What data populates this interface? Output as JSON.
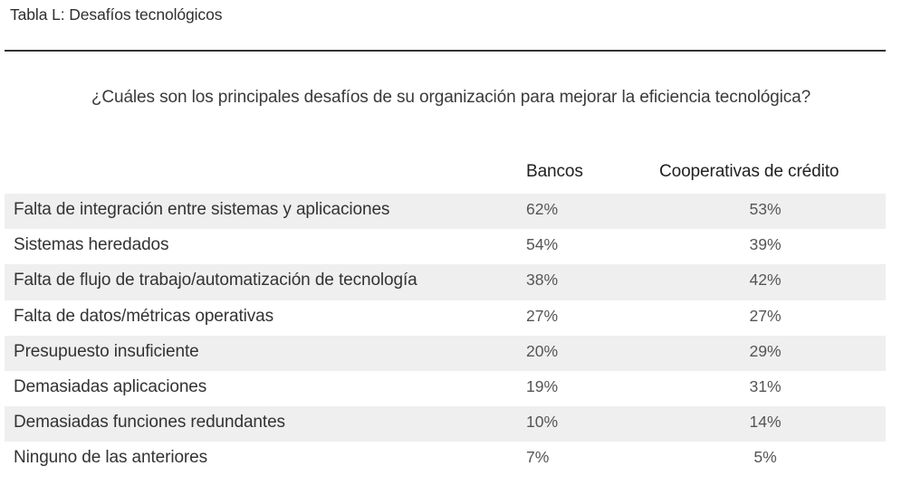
{
  "title": "Tabla L: Desafíos tecnológicos",
  "question": "¿Cuáles son los principales desafíos de su organización para mejorar la eficiencia tecnológica?",
  "columns": [
    "Bancos",
    "Cooperativas de crédito"
  ],
  "rows": [
    {
      "label": "Falta de integración entre sistemas y aplicaciones",
      "bancos": "62%",
      "cooperativas": "53%"
    },
    {
      "label": "Sistemas heredados",
      "bancos": "54%",
      "cooperativas": "39%"
    },
    {
      "label": "Falta de flujo de trabajo/automatización de tecnología",
      "bancos": "38%",
      "cooperativas": "42%"
    },
    {
      "label": "Falta de datos/métricas operativas",
      "bancos": "27%",
      "cooperativas": "27%"
    },
    {
      "label": "Presupuesto insuficiente",
      "bancos": "20%",
      "cooperativas": "29%"
    },
    {
      "label": "Demasiadas aplicaciones",
      "bancos": "19%",
      "cooperativas": "31%"
    },
    {
      "label": "Demasiadas funciones redundantes",
      "bancos": "10%",
      "cooperativas": "14%"
    },
    {
      "label": "Ninguno de las anteriores",
      "bancos": "7%",
      "cooperativas": "5%"
    }
  ],
  "chart_data": {
    "type": "table",
    "title": "Tabla L: Desafíos tecnológicos",
    "subtitle": "¿Cuáles son los principales desafíos de su organización para mejorar la eficiencia tecnológica?",
    "categories": [
      "Falta de integración entre sistemas y aplicaciones",
      "Sistemas heredados",
      "Falta de flujo de trabajo/automatización de tecnología",
      "Falta de datos/métricas operativas",
      "Presupuesto insuficiente",
      "Demasiadas aplicaciones",
      "Demasiadas funciones redundantes",
      "Ninguno de las anteriores"
    ],
    "series": [
      {
        "name": "Bancos",
        "values": [
          62,
          54,
          38,
          27,
          20,
          19,
          10,
          7
        ]
      },
      {
        "name": "Cooperativas de crédito",
        "values": [
          53,
          39,
          42,
          27,
          29,
          31,
          14,
          5
        ]
      }
    ],
    "unit": "%",
    "row_shading": "alternating, odd rows shaded",
    "shade_color": "#efefef"
  }
}
